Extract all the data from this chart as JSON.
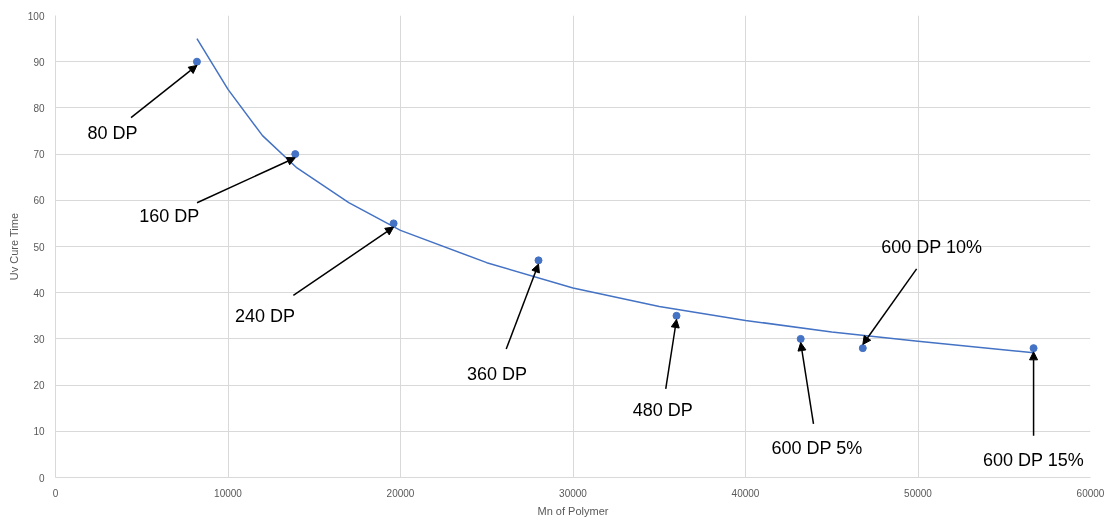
{
  "chart_data": {
    "type": "scatter",
    "xlabel": "Mn of Polymer",
    "ylabel": "Uv Cure Time",
    "xlim": [
      0,
      60000
    ],
    "ylim": [
      0,
      100
    ],
    "xticks": [
      0,
      10000,
      20000,
      30000,
      40000,
      50000,
      60000
    ],
    "yticks": [
      0,
      10,
      20,
      30,
      40,
      50,
      60,
      70,
      80,
      90,
      100
    ],
    "grid": true,
    "series": [
      {
        "marker": "circle",
        "color": "#4472c4",
        "x": [
          8200,
          13900,
          19600,
          28000,
          36000,
          43200,
          46800,
          56700
        ],
        "values": [
          90,
          70,
          55,
          47,
          35,
          30,
          28,
          28
        ]
      },
      {
        "type": "line",
        "color": "#4472c4",
        "line_style": "solid",
        "x": [
          8200,
          10000,
          12000,
          14000,
          17000,
          20000,
          25000,
          30000,
          35000,
          40000,
          45000,
          50000,
          56700
        ],
        "values": [
          95,
          84,
          74,
          67,
          59.5,
          53.5,
          46.5,
          41,
          37,
          34,
          31.5,
          29.5,
          27
        ]
      }
    ],
    "annotations": [
      {
        "text": "80 DP",
        "x": 8200,
        "y": 90
      },
      {
        "text": "160 DP",
        "x": 13900,
        "y": 70
      },
      {
        "text": "240 DP",
        "x": 19600,
        "y": 55
      },
      {
        "text": "360 DP",
        "x": 28000,
        "y": 47
      },
      {
        "text": "480 DP",
        "x": 36000,
        "y": 35
      },
      {
        "text": "600 DP 5%",
        "x": 43200,
        "y": 30
      },
      {
        "text": "600 DP 10%",
        "x": 46800,
        "y": 28
      },
      {
        "text": "600 DP 15%",
        "x": 56700,
        "y": 28
      }
    ]
  }
}
